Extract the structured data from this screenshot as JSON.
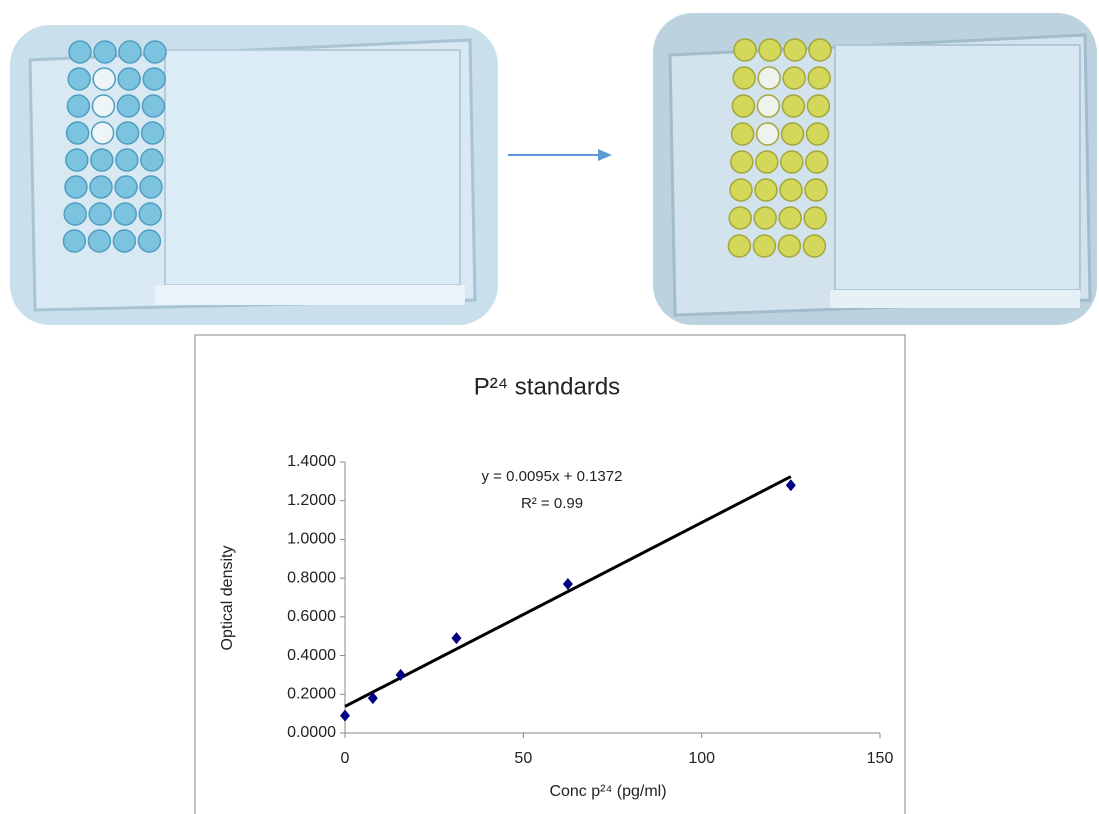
{
  "chart_data": {
    "type": "scatter",
    "title": "P²⁴ standards",
    "x_label": "Conc p²⁴ (pg/ml)",
    "y_label": "Optical density",
    "x": [
      0,
      7.8,
      15.6,
      31.25,
      62.5,
      125
    ],
    "values": [
      0.09,
      0.18,
      0.3,
      0.49,
      0.77,
      1.28
    ],
    "color": "#000080",
    "trendline": {
      "slope": 0.0095,
      "intercept": 0.1372,
      "color": "#000000"
    },
    "annotations": [
      "y = 0.0095x + 0.1372",
      "R² = 0.99"
    ],
    "xlim": [
      0,
      150
    ],
    "xticks": [
      0,
      50,
      100,
      150
    ],
    "ylim": [
      0,
      1.4
    ],
    "yticks": [
      {
        "value": 0,
        "label": "0.0000"
      },
      {
        "value": 0.2,
        "label": "0.2000"
      },
      {
        "value": 0.4,
        "label": "0.4000"
      },
      {
        "value": 0.6,
        "label": "0.6000"
      },
      {
        "value": 0.8,
        "label": "0.8000"
      },
      {
        "value": 1.0,
        "label": "1.0000"
      },
      {
        "value": 1.2,
        "label": "1.2000"
      },
      {
        "value": 1.4,
        "label": "1.4000"
      }
    ],
    "grid": false
  }
}
